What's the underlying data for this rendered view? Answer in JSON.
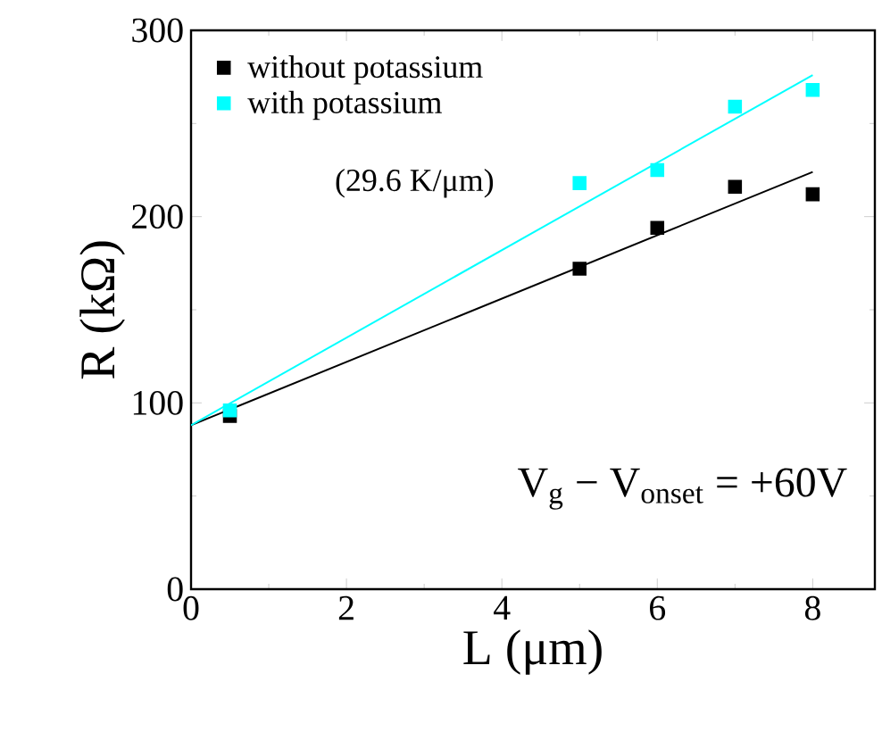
{
  "chart_data": {
    "type": "scatter",
    "xlabel": "L (μm)",
    "ylabel": "R (kΩ)",
    "xlim": [
      0,
      8.8
    ],
    "ylim": [
      0,
      300
    ],
    "xticks": [
      0,
      2,
      4,
      6,
      8
    ],
    "yticks": [
      0,
      100,
      200,
      300
    ],
    "grid": false,
    "legend": "top left",
    "marker": "square",
    "series": [
      {
        "name": "without potassium",
        "color": "#000000",
        "x": [
          0.5,
          5,
          6,
          7,
          8
        ],
        "values": [
          93,
          172,
          194,
          216,
          212
        ]
      },
      {
        "name": "with potassium",
        "color": "#00ffff",
        "x": [
          0.5,
          5,
          6,
          7,
          8
        ],
        "values": [
          96,
          218,
          225,
          259,
          268
        ]
      },
      {
        "type": "line",
        "marker": "none",
        "color": "#000000",
        "x": [
          0,
          8
        ],
        "values": [
          88,
          224
        ]
      },
      {
        "type": "line",
        "marker": "none",
        "color": "#00ffff",
        "x": [
          0,
          8
        ],
        "values": [
          88,
          276
        ]
      }
    ],
    "annotations": [
      "(29.6 K/μm)",
      "V$_{g}$ − V$_{onset}$ = +60V"
    ]
  }
}
